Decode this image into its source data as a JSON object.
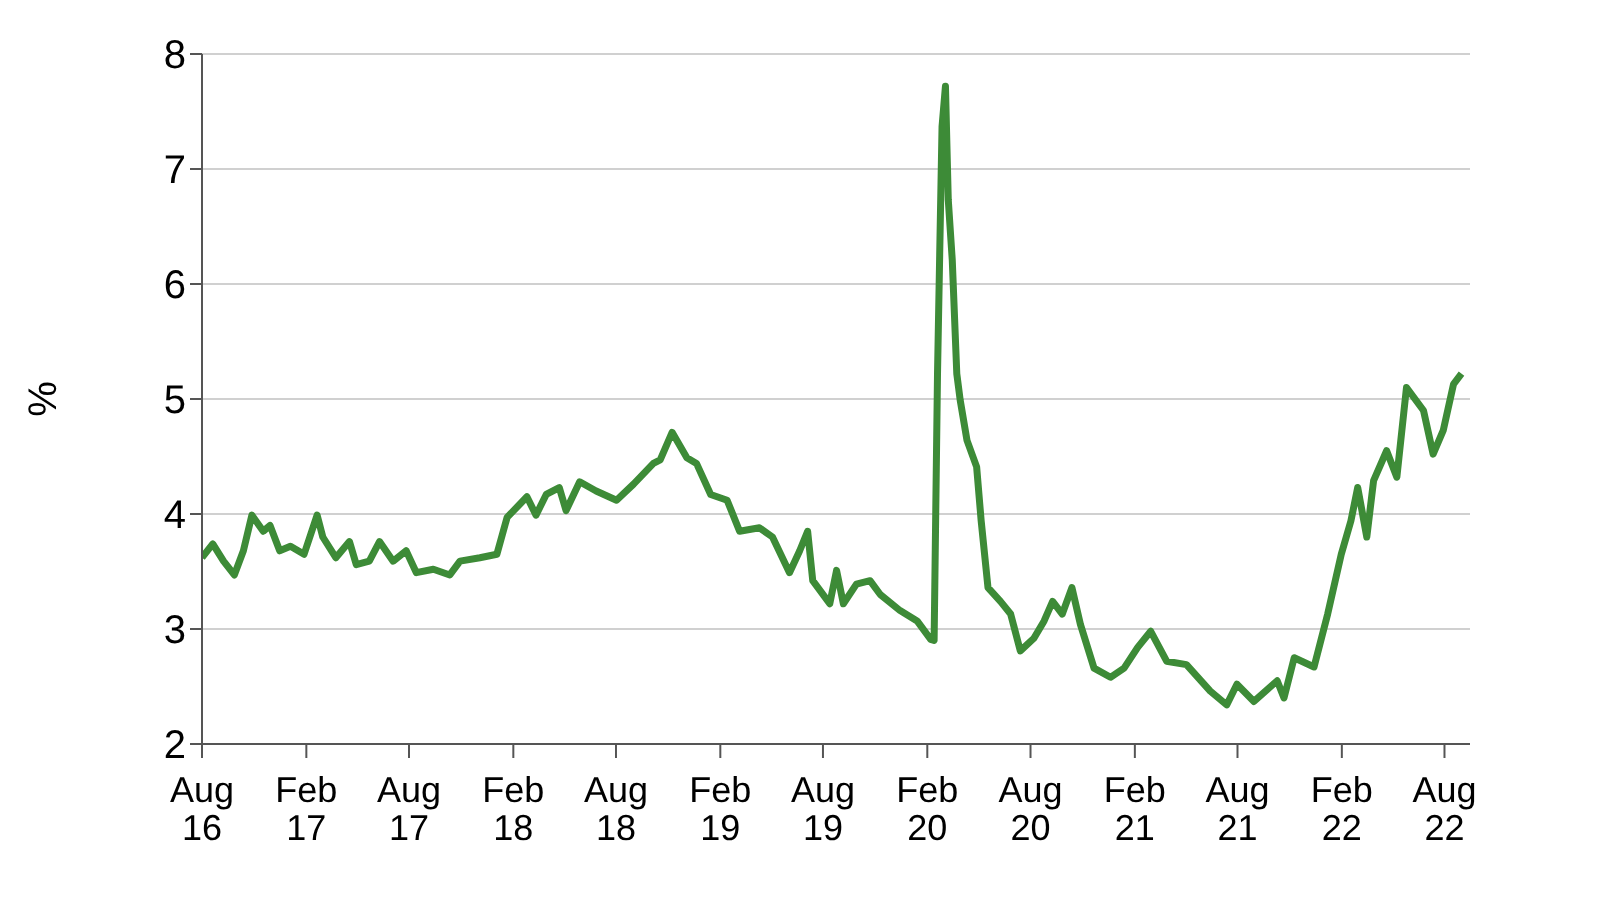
{
  "chart_data": {
    "type": "line",
    "ylabel": "%",
    "x": [
      "2016-08-01",
      "2016-08-20",
      "2016-09-08",
      "2016-09-27",
      "2016-10-13",
      "2016-10-28",
      "2016-11-17",
      "2016-11-29",
      "2016-12-16",
      "2017-01-04",
      "2017-01-28",
      "2017-02-20",
      "2017-03-02",
      "2017-03-25",
      "2017-04-18",
      "2017-04-30",
      "2017-05-23",
      "2017-06-10",
      "2017-07-04",
      "2017-07-27",
      "2017-08-14",
      "2017-09-13",
      "2017-10-12",
      "2017-10-30",
      "2017-12-04",
      "2018-01-03",
      "2018-01-21",
      "2018-02-25",
      "2018-03-13",
      "2018-03-31",
      "2018-04-23",
      "2018-05-05",
      "2018-05-29",
      "2018-06-27",
      "2018-08-02",
      "2018-09-01",
      "2018-10-06",
      "2018-10-18",
      "2018-11-08",
      "2018-12-04",
      "2018-12-21",
      "2019-01-15",
      "2019-02-13",
      "2019-03-07",
      "2019-04-11",
      "2019-05-04",
      "2019-06-03",
      "2019-06-21",
      "2019-07-05",
      "2019-07-14",
      "2019-08-13",
      "2019-08-25",
      "2019-09-06",
      "2019-09-29",
      "2019-10-23",
      "2019-11-10",
      "2019-12-15",
      "2020-01-14",
      "2020-02-07",
      "2020-02-13",
      "2020-02-19",
      "2020-02-27",
      "2020-03-04",
      "2020-03-09",
      "2020-03-16",
      "2020-03-24",
      "2020-03-30",
      "2020-04-11",
      "2020-04-28",
      "2020-05-06",
      "2020-05-18",
      "2020-06-09",
      "2020-06-27",
      "2020-07-14",
      "2020-08-07",
      "2020-08-25",
      "2020-09-09",
      "2020-09-26",
      "2020-10-13",
      "2020-10-28",
      "2020-11-21",
      "2020-12-20",
      "2021-01-13",
      "2021-02-06",
      "2021-03-01",
      "2021-03-29",
      "2021-05-03",
      "2021-06-14",
      "2021-07-13",
      "2021-07-31",
      "2021-08-30",
      "2021-10-10",
      "2021-10-22",
      "2021-11-09",
      "2021-12-14",
      "2022-01-07",
      "2022-01-31",
      "2022-02-17",
      "2022-03-01",
      "2022-03-17",
      "2022-03-29",
      "2022-04-21",
      "2022-05-09",
      "2022-05-26",
      "2022-06-25",
      "2022-07-12",
      "2022-07-30",
      "2022-08-17",
      "2022-08-31"
    ],
    "series": [
      {
        "color": "#3d8b37",
        "values": [
          3.62,
          3.74,
          3.59,
          3.47,
          3.68,
          3.99,
          3.85,
          3.9,
          3.68,
          3.72,
          3.65,
          3.99,
          3.8,
          3.62,
          3.76,
          3.56,
          3.59,
          3.76,
          3.59,
          3.68,
          3.49,
          3.52,
          3.47,
          3.59,
          3.62,
          3.65,
          3.97,
          4.15,
          3.99,
          4.17,
          4.23,
          4.03,
          4.28,
          4.2,
          4.12,
          4.26,
          4.44,
          4.47,
          4.71,
          4.49,
          4.44,
          4.17,
          4.12,
          3.85,
          3.88,
          3.8,
          3.49,
          3.68,
          3.85,
          3.42,
          3.22,
          3.51,
          3.22,
          3.39,
          3.42,
          3.3,
          3.16,
          3.07,
          2.91,
          2.9,
          5.22,
          7.37,
          7.72,
          6.73,
          6.21,
          5.22,
          4.99,
          4.64,
          4.41,
          3.94,
          3.36,
          3.24,
          3.13,
          2.81,
          2.92,
          3.07,
          3.24,
          3.13,
          3.36,
          3.04,
          2.66,
          2.58,
          2.66,
          2.84,
          2.98,
          2.72,
          2.69,
          2.46,
          2.34,
          2.52,
          2.37,
          2.55,
          2.4,
          2.75,
          2.67,
          3.13,
          3.65,
          3.94,
          4.23,
          3.8,
          4.29,
          4.55,
          4.32,
          5.1,
          4.9,
          4.52,
          4.73,
          5.13,
          5.22
        ]
      }
    ],
    "xlim": [
      "2016-08-01",
      "2022-09-15"
    ],
    "xticks": [
      {
        "value": "2016-08-01",
        "label": "Aug 16"
      },
      {
        "value": "2017-02-01",
        "label": "Feb 17"
      },
      {
        "value": "2017-08-01",
        "label": "Aug 17"
      },
      {
        "value": "2018-02-01",
        "label": "Feb 18"
      },
      {
        "value": "2018-08-01",
        "label": "Aug 18"
      },
      {
        "value": "2019-02-01",
        "label": "Feb 19"
      },
      {
        "value": "2019-08-01",
        "label": "Aug 19"
      },
      {
        "value": "2020-02-01",
        "label": "Feb 20"
      },
      {
        "value": "2020-08-01",
        "label": "Aug 20"
      },
      {
        "value": "2021-02-01",
        "label": "Feb 21"
      },
      {
        "value": "2021-08-01",
        "label": "Aug 21"
      },
      {
        "value": "2022-02-01",
        "label": "Feb 22"
      },
      {
        "value": "2022-08-01",
        "label": "Aug 22"
      }
    ],
    "ylim": [
      2,
      8
    ],
    "yticks": [
      2,
      3,
      4,
      5,
      6,
      7,
      8
    ],
    "grid": "y",
    "legend": false,
    "marker": "none",
    "line_style": "solid"
  }
}
